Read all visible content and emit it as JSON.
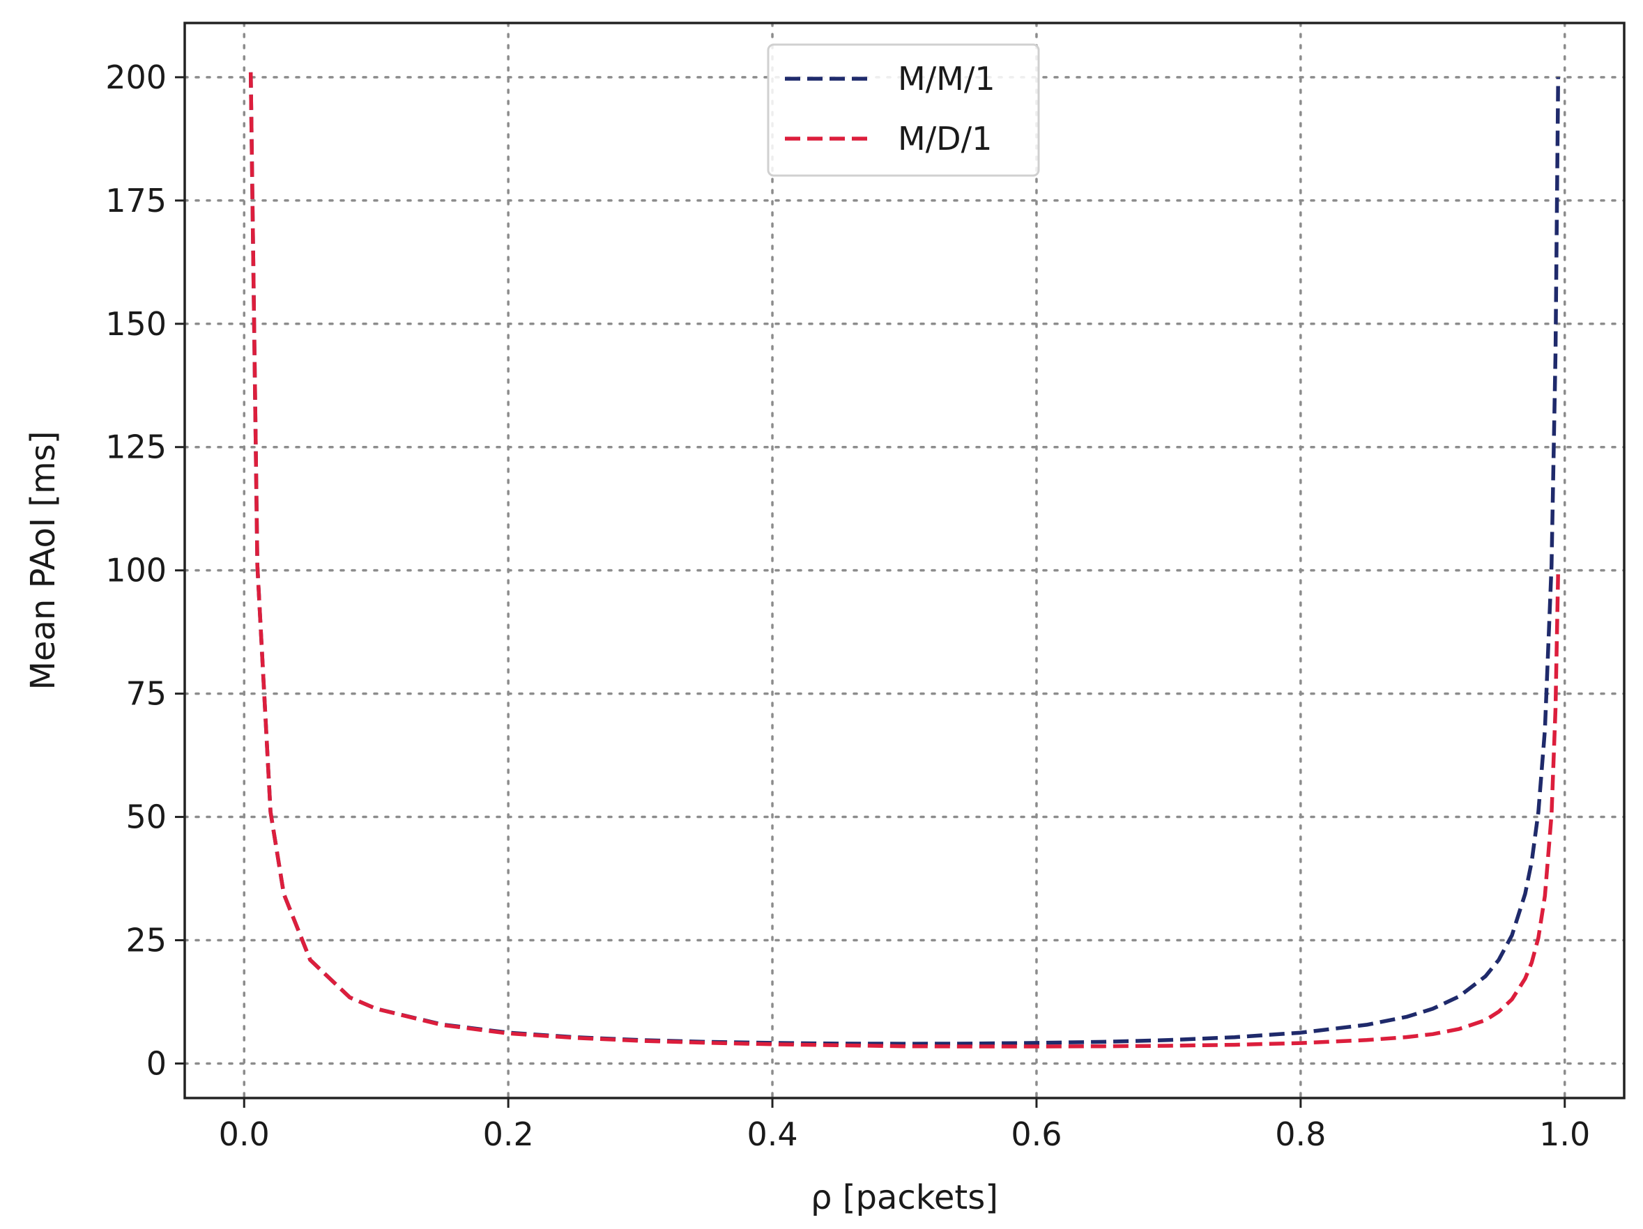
{
  "chart_data": {
    "type": "line",
    "title": "",
    "xlabel": "ρ [packets]",
    "ylabel": "Mean PAoI [ms]",
    "xlim": [
      -0.045,
      1.045
    ],
    "ylim": [
      -7,
      211
    ],
    "xticks": [
      0.0,
      0.2,
      0.4,
      0.6,
      0.8,
      1.0
    ],
    "xtick_labels": [
      "0.0",
      "0.2",
      "0.4",
      "0.6",
      "0.8",
      "1.0"
    ],
    "yticks": [
      0,
      25,
      50,
      75,
      100,
      125,
      150,
      175,
      200
    ],
    "ytick_labels": [
      "0",
      "25",
      "50",
      "75",
      "100",
      "125",
      "150",
      "175",
      "200"
    ],
    "grid": true,
    "legend_position": "upper-center",
    "series": [
      {
        "name": "M/M/1",
        "color": "#1f2a6b",
        "x": [
          0.005,
          0.01,
          0.02,
          0.03,
          0.05,
          0.08,
          0.1,
          0.15,
          0.2,
          0.25,
          0.3,
          0.35,
          0.4,
          0.45,
          0.5,
          0.55,
          0.6,
          0.65,
          0.7,
          0.75,
          0.8,
          0.85,
          0.88,
          0.9,
          0.92,
          0.94,
          0.95,
          0.96,
          0.97,
          0.975,
          0.98,
          0.985,
          0.99,
          0.993,
          0.995
        ],
        "y": [
          201,
          101,
          51,
          34.4,
          21,
          13.4,
          11.1,
          7.9,
          6.25,
          5.33,
          4.76,
          4.39,
          4.17,
          4.04,
          4.0,
          4.04,
          4.17,
          4.39,
          4.76,
          5.33,
          6.25,
          7.85,
          9.45,
          11.1,
          13.6,
          17.7,
          21,
          26,
          34.4,
          41,
          51,
          67.7,
          101,
          144,
          200
        ]
      },
      {
        "name": "M/D/1",
        "color": "#dc1e3c",
        "x": [
          0.005,
          0.01,
          0.02,
          0.03,
          0.05,
          0.08,
          0.1,
          0.15,
          0.2,
          0.25,
          0.3,
          0.35,
          0.4,
          0.45,
          0.5,
          0.55,
          0.6,
          0.65,
          0.7,
          0.75,
          0.8,
          0.85,
          0.88,
          0.9,
          0.92,
          0.94,
          0.95,
          0.96,
          0.97,
          0.975,
          0.98,
          0.985,
          0.99,
          0.993,
          0.995
        ],
        "y": [
          201,
          101,
          51,
          34.4,
          21,
          13.4,
          11.1,
          7.8,
          6.1,
          5.2,
          4.6,
          4.2,
          3.9,
          3.7,
          3.5,
          3.45,
          3.45,
          3.5,
          3.6,
          3.8,
          4.15,
          4.75,
          5.35,
          5.95,
          7.0,
          8.8,
          10.5,
          13.0,
          17.2,
          20.5,
          25.5,
          34,
          50.5,
          72,
          100
        ]
      }
    ]
  }
}
